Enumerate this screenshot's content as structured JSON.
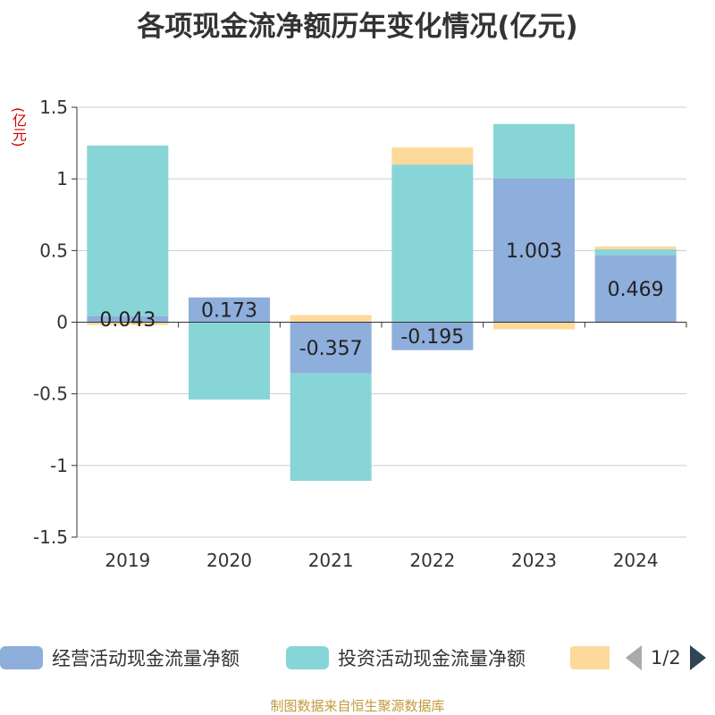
{
  "chart_data": {
    "type": "bar",
    "stacked": true,
    "title": "各项现金流净额历年变化情况(亿元)",
    "ylabel": "(亿元)",
    "categories": [
      "2019",
      "2020",
      "2021",
      "2022",
      "2023",
      "2024"
    ],
    "ylim": [
      -1.5,
      1.5
    ],
    "yticks": [
      -1.5,
      -1,
      -0.5,
      0,
      0.5,
      1,
      1.5
    ],
    "ytick_labels": [
      "-1.5",
      "-1",
      "-0.5",
      "0",
      "0.5",
      "1",
      "1.5"
    ],
    "grid": true,
    "legend_position": "bottom",
    "series": [
      {
        "name": "经营活动现金流量净额",
        "color": "#8eaedb",
        "values": [
          0.043,
          0.173,
          -0.357,
          -0.195,
          1.003,
          0.469
        ],
        "labels": [
          "0.043",
          "0.173",
          "-0.357",
          "-0.195",
          "1.003",
          "0.469"
        ]
      },
      {
        "name": "投资活动现金流量净额",
        "color": "#88d5d8",
        "values": [
          1.19,
          -0.54,
          -0.75,
          1.1,
          0.38,
          0.04
        ],
        "labels": []
      },
      {
        "name": "",
        "color": "#fdda9b",
        "values": [
          -0.02,
          0,
          0.05,
          0.12,
          -0.05,
          0.02
        ],
        "labels": []
      }
    ]
  },
  "legend": {
    "page": "1/2"
  },
  "source": "制图数据来自恒生聚源数据库"
}
